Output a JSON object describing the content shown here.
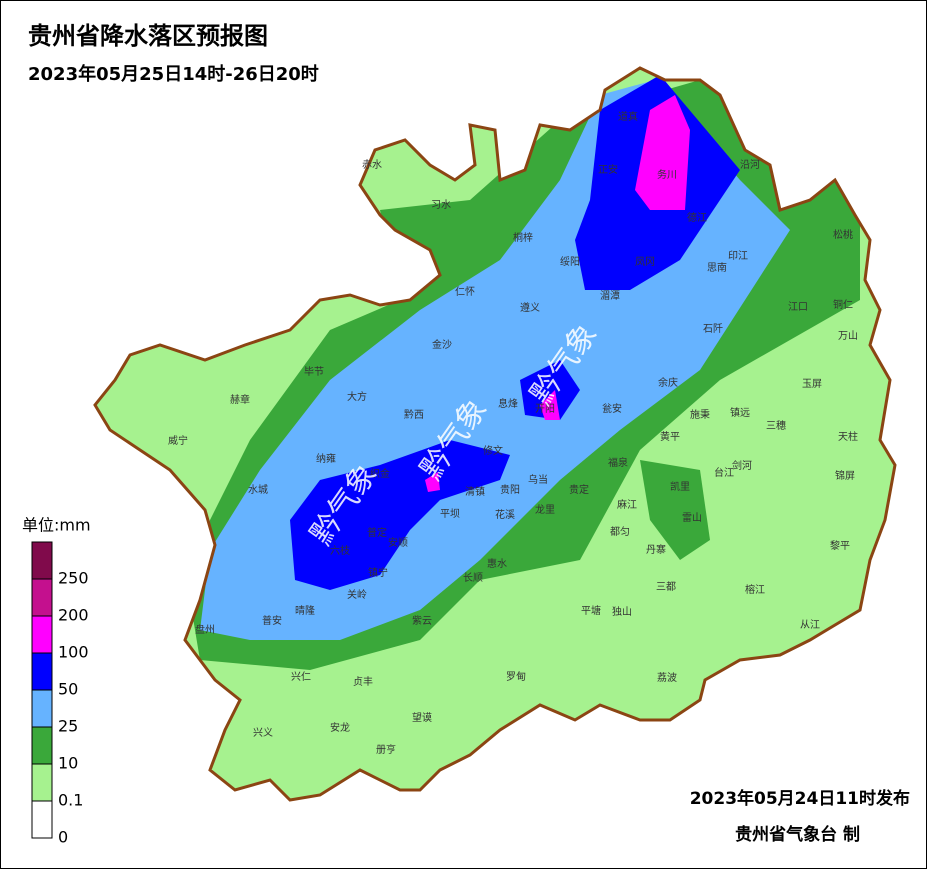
{
  "header": {
    "title": "贵州省降水落区预报图",
    "subtitle": "2023年05月25日14时-26日20时"
  },
  "watermark": "黔气象",
  "legend": {
    "unit": "单位:mm",
    "labels": [
      250,
      200,
      100,
      50,
      25,
      10,
      0.1,
      0
    ],
    "colors": [
      "#800a4b",
      "#c4108e",
      "#ff00ff",
      "#0000ff",
      "#66b3ff",
      "#3aa83a",
      "#a6f28f",
      "#ffffff"
    ]
  },
  "counties": [
    "道真",
    "正安",
    "务川",
    "沿河",
    "赤水",
    "习水",
    "桐梓",
    "德江",
    "松桃",
    "绥阳",
    "凤冈",
    "印江",
    "思南",
    "仁怀",
    "遵义",
    "湄潭",
    "江口",
    "铜仁",
    "石阡",
    "万山",
    "金沙",
    "毕节",
    "余庆",
    "玉屏",
    "大方",
    "赫章",
    "黔西",
    "息烽",
    "开阳",
    "瓮安",
    "施秉",
    "镇远",
    "三穗",
    "天柱",
    "威宁",
    "黄平",
    "修文",
    "纳雍",
    "福泉",
    "台江",
    "剑河",
    "锦屏",
    "织金",
    "清镇",
    "贵阳",
    "乌当",
    "凯里",
    "水城",
    "贵定",
    "麻江",
    "平坝",
    "花溪",
    "龙里",
    "雷山",
    "黎平",
    "六枝",
    "普定",
    "安顺",
    "都匀",
    "丹寨",
    "镇宁",
    "长顺",
    "惠水",
    "榕江",
    "关岭",
    "三都",
    "平塘",
    "独山",
    "晴隆",
    "普安",
    "紫云",
    "从江",
    "盘州",
    "罗甸",
    "荔波",
    "兴仁",
    "贞丰",
    "望谟",
    "安龙",
    "兴义",
    "册亨"
  ],
  "footer": {
    "issued": "2023年05月24日11时发布",
    "agency": "贵州省气象台 制"
  }
}
